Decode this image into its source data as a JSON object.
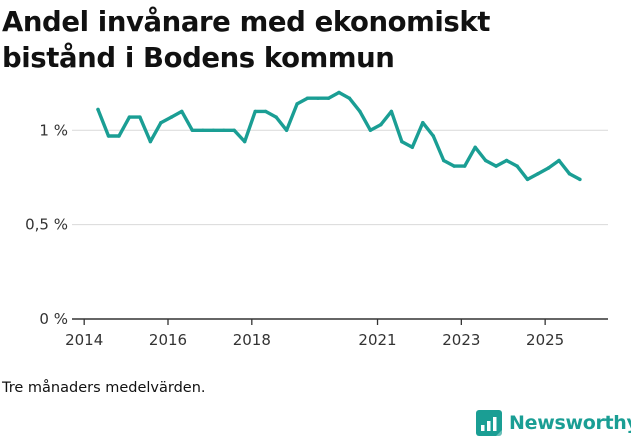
{
  "chart_data": {
    "type": "line",
    "title": "Andel invånare med ekonomiskt bistånd i Bodens kommun",
    "note": "Tre månaders medelvärden.",
    "xlabel": "",
    "ylabel": "",
    "x_ticks": [
      {
        "label": "2014",
        "value": 2014.0
      },
      {
        "label": "2016",
        "value": 2016.0
      },
      {
        "label": "2018",
        "value": 2018.0
      },
      {
        "label": "2021",
        "value": 2021.0
      },
      {
        "label": "2023",
        "value": 2023.0
      },
      {
        "label": "2025",
        "value": 2025.0
      }
    ],
    "y_ticks": [
      {
        "label": "0 %",
        "value": 0
      },
      {
        "label": "0,5 %",
        "value": 0.5
      },
      {
        "label": "1 %",
        "value": 1.0
      }
    ],
    "xlim": [
      2013.9,
      2026.5
    ],
    "ylim": [
      0,
      1.24
    ],
    "grid": true,
    "color": "#1a9e94",
    "series": [
      {
        "name": "Andel invånare med ekonomiskt bistånd",
        "x": [
          2014.33,
          2014.58,
          2014.83,
          2015.08,
          2015.33,
          2015.58,
          2015.83,
          2016.08,
          2016.33,
          2016.58,
          2016.83,
          2017.08,
          2017.33,
          2017.58,
          2017.83,
          2018.08,
          2018.33,
          2018.58,
          2018.83,
          2019.08,
          2019.33,
          2019.58,
          2019.83,
          2020.08,
          2020.33,
          2020.58,
          2020.83,
          2021.08,
          2021.33,
          2021.58,
          2021.83,
          2022.08,
          2022.33,
          2022.58,
          2022.83,
          2023.08,
          2023.33,
          2023.58,
          2023.83,
          2024.08,
          2024.33,
          2024.58,
          2024.83,
          2025.08,
          2025.33,
          2025.58,
          2025.83
        ],
        "values": [
          1.11,
          0.97,
          0.97,
          1.07,
          1.07,
          0.94,
          1.04,
          1.07,
          1.1,
          1.0,
          1.0,
          1.0,
          1.0,
          1.0,
          0.94,
          1.1,
          1.1,
          1.07,
          1.0,
          1.14,
          1.17,
          1.17,
          1.17,
          1.2,
          1.17,
          1.1,
          1.0,
          1.03,
          1.1,
          0.94,
          0.91,
          1.04,
          0.97,
          0.84,
          0.81,
          0.81,
          0.91,
          0.84,
          0.81,
          0.84,
          0.81,
          0.74,
          0.77,
          0.8,
          0.84,
          0.77,
          0.74
        ]
      }
    ]
  },
  "branding": {
    "name": "Newsworthy"
  },
  "icons": {
    "logo": "newsworthy-logo-icon"
  }
}
